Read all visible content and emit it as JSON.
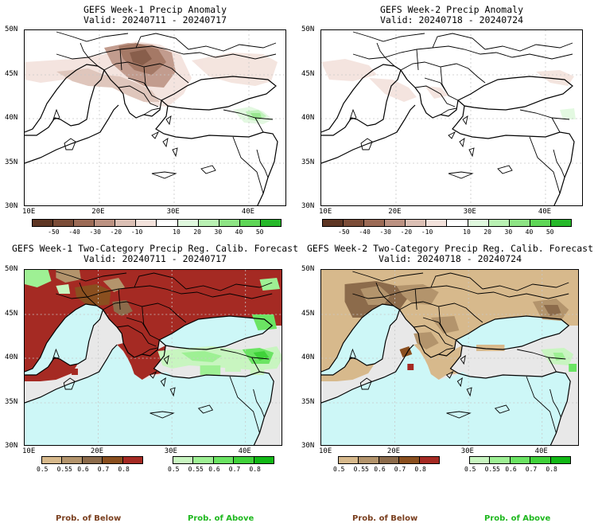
{
  "panels": [
    {
      "title": "GEFS Week-1 Precip Anomaly",
      "valid": "Valid: 20240711 - 20240717"
    },
    {
      "title": "GEFS Week-2 Precip Anomaly",
      "valid": "Valid: 20240718 - 20240724"
    },
    {
      "title": "GEFS Week-1 Two-Category Precip Reg. Calib. Forecast",
      "valid": "Valid: 20240711 - 20240717"
    },
    {
      "title": "GEFS Week-2 Two-Category Precip Reg. Calib. Forecast",
      "valid": "Valid: 20240718 - 20240724"
    }
  ],
  "lat_labels": [
    "50N",
    "45N",
    "40N",
    "35N",
    "30N"
  ],
  "lon_labels": [
    "10E",
    "20E",
    "30E",
    "40E"
  ],
  "anomaly_colorbar": {
    "ticks": [
      "-50",
      "-40",
      "-30",
      "-20",
      "-10",
      "10",
      "20",
      "30",
      "40",
      "50"
    ],
    "colors": [
      "#5e3624",
      "#7c4d38",
      "#9c6b56",
      "#bc9282",
      "#dcc0b5",
      "#f3e2dc",
      "#ffffff",
      "#e0f8de",
      "#b9f1b3",
      "#8ee485",
      "#5fd657",
      "#26b92a"
    ]
  },
  "below_colorbar": {
    "ticks": [
      "0.5",
      "0.55",
      "0.6",
      "0.7",
      "0.8"
    ],
    "colors": [
      "#d7b98c",
      "#b3946c",
      "#8c6b4b",
      "#8a4f1f",
      "#a52a23"
    ]
  },
  "above_colorbar": {
    "ticks": [
      "0.5",
      "0.55",
      "0.6",
      "0.7",
      "0.8"
    ],
    "colors": [
      "#c8f5c0",
      "#9ef094",
      "#6be463",
      "#40d23a",
      "#11b815"
    ]
  },
  "legend": {
    "below": "Prob. of Below",
    "above": "Prob. of Above"
  },
  "colors": {
    "sea_probability": "#cdf7f7",
    "no_signal_land": "#e8e8e8",
    "below_text": "#7a3f1f",
    "above_text": "#1fb81f"
  }
}
